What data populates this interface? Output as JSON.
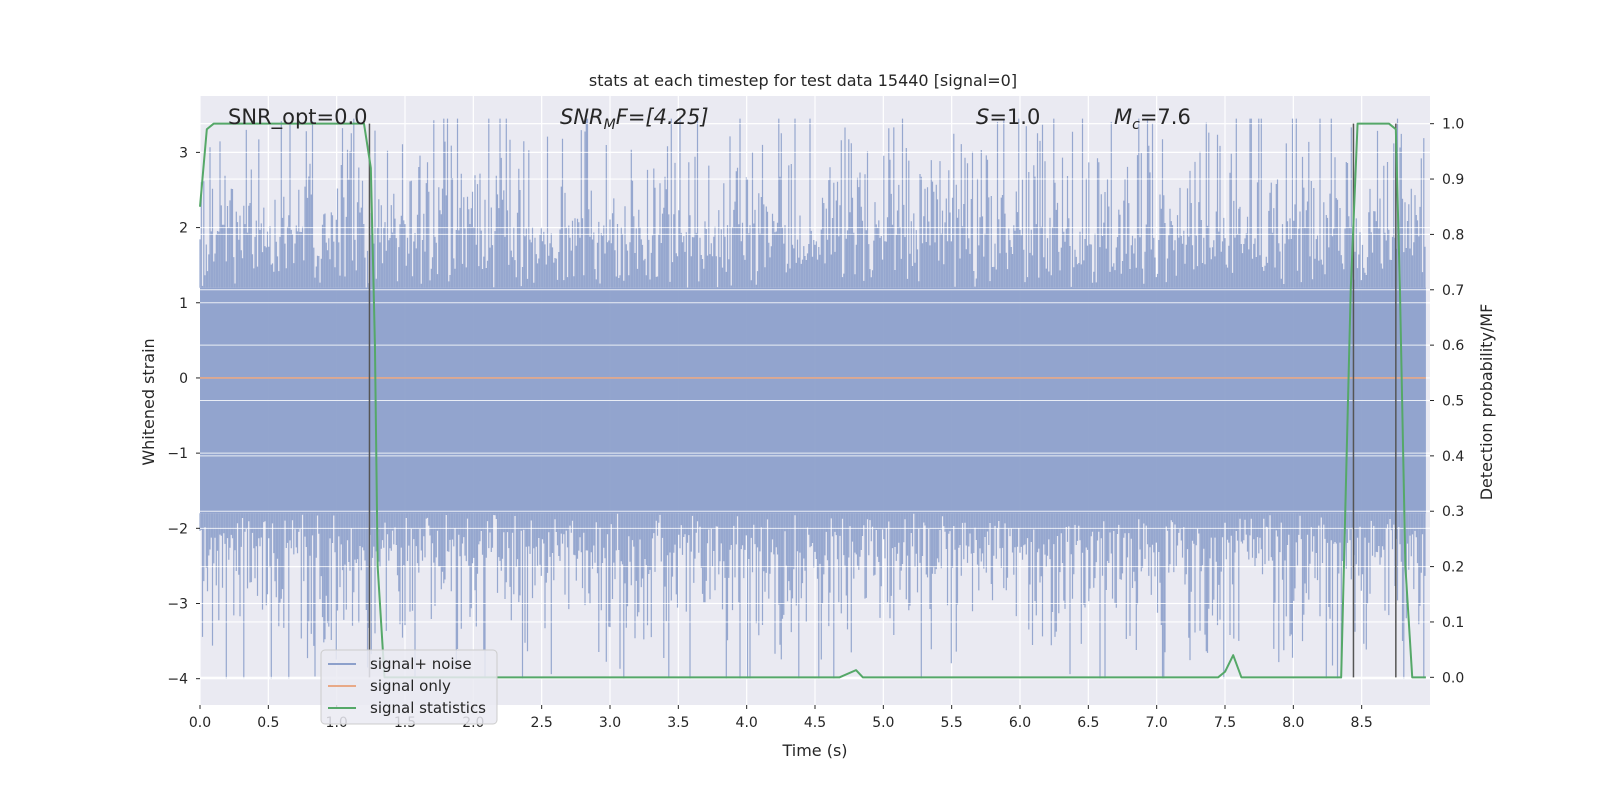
{
  "chart_data": {
    "type": "line",
    "title": "stats at each timestep for test data 15440 [signal=0]",
    "xlabel": "Time (s)",
    "ylabel": "Whitened strain",
    "y2label": "Detection probability/MF",
    "xlim": [
      0.0,
      9.0
    ],
    "ylim": [
      -4.35,
      3.75
    ],
    "y2lim": [
      -0.05,
      1.05
    ],
    "x_ticks": [
      "0.0",
      "0.5",
      "1.0",
      "1.5",
      "2.0",
      "2.5",
      "3.0",
      "3.5",
      "4.0",
      "4.5",
      "5.0",
      "5.5",
      "6.0",
      "6.5",
      "7.0",
      "7.5",
      "8.0",
      "8.5"
    ],
    "y_ticks": [
      "3",
      "2",
      "1",
      "0",
      "−1",
      "−2",
      "−3",
      "−4"
    ],
    "y2_ticks": [
      "1.0",
      "0.9",
      "0.8",
      "0.7",
      "0.6",
      "0.5",
      "0.4",
      "0.3",
      "0.2",
      "0.1",
      "0.0"
    ],
    "grid": true,
    "legend_position": "lower-left",
    "annotations": {
      "snr_opt": "SNR_opt=0.0",
      "snr_mf_prefix": "SNR",
      "snr_mf_sub": "M",
      "snr_mf_suffix": "F=[4.25]",
      "s_label": "S",
      "s_value": "=1.0",
      "mc_label": "M",
      "mc_sub": "c",
      "mc_value": "=7.6"
    },
    "vlines_x": [
      1.24,
      8.44,
      8.75
    ],
    "noise_band": {
      "time_start": 0.0,
      "time_end": 8.97,
      "core_low": -1.8,
      "core_high": 1.2,
      "peak_low": -4.0,
      "peak_high": 3.45
    },
    "series": [
      {
        "name": "signal+ noise",
        "color": "#8da0cb"
      },
      {
        "name": "signal only",
        "color": "#e8a987",
        "x": [
          0.0,
          8.97
        ],
        "y": [
          0.0,
          0.0
        ]
      },
      {
        "name": "signal statistics",
        "color": "#55a868",
        "axis": "right",
        "x": [
          0.0,
          0.05,
          0.1,
          0.2,
          1.0,
          1.2,
          1.25,
          1.28,
          1.3,
          1.35,
          1.45,
          3.7,
          3.8,
          4.5,
          4.68,
          4.8,
          4.85,
          4.9,
          7.3,
          7.45,
          7.5,
          7.56,
          7.62,
          7.7,
          8.35,
          8.42,
          8.47,
          8.7,
          8.75,
          8.78,
          8.82,
          8.87,
          8.97
        ],
        "y": [
          0.85,
          0.99,
          1.0,
          1.0,
          1.0,
          1.0,
          0.92,
          0.6,
          0.2,
          0.0,
          0.0,
          0.0,
          0.0,
          0.0,
          0.0,
          0.013,
          0.0,
          0.0,
          0.0,
          0.0,
          0.01,
          0.04,
          0.0,
          0.0,
          0.0,
          0.7,
          1.0,
          1.0,
          0.99,
          0.7,
          0.2,
          0.0,
          0.0
        ]
      }
    ]
  }
}
